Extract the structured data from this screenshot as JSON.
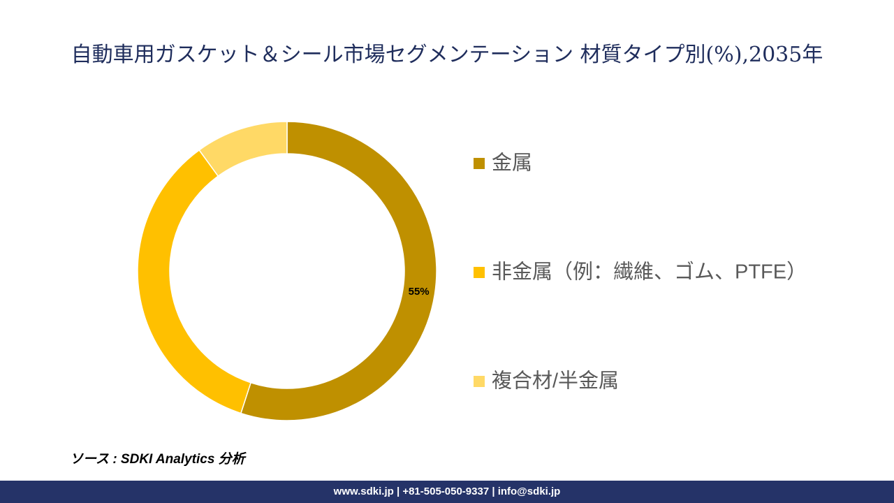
{
  "chart_data": {
    "type": "donut",
    "title": "自動車用ガスケット＆シール市場セグメンテーション 材質タイプ別(%),2035年",
    "categories": [
      "金属",
      "非金属（例：繊維、ゴム、PTFE）",
      "複合材/半金属"
    ],
    "values": [
      55,
      35,
      10
    ],
    "value_labels": [
      "55%",
      null,
      null
    ],
    "colors": [
      "#bf9000",
      "#ffc000",
      "#ffd966"
    ]
  },
  "source": "ソース : SDKI Analytics 分析",
  "footer": "www.sdki.jp | +81-505-050-9337 | info@sdki.jp"
}
